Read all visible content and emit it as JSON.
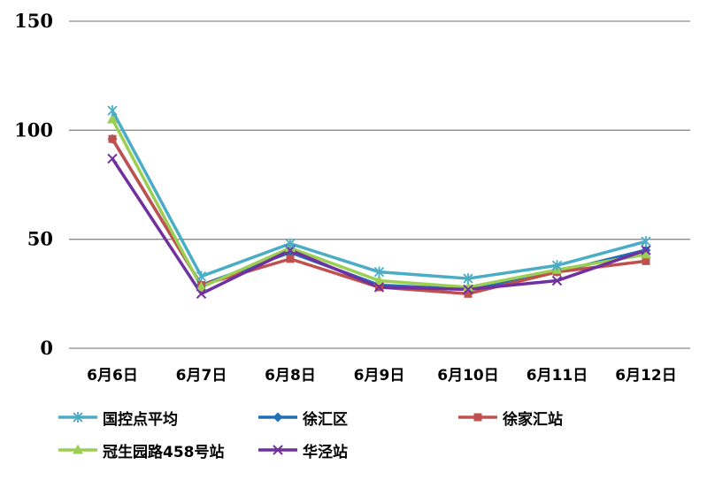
{
  "chart_data": {
    "type": "line",
    "title": "",
    "xlabel": "",
    "ylabel": "",
    "categories": [
      "6月6日",
      "6月7日",
      "6月8日",
      "6月9日",
      "6月10日",
      "6月11日",
      "6月12日"
    ],
    "ylim": [
      0,
      150
    ],
    "yticks": [
      0,
      50,
      100,
      150
    ],
    "grid": true,
    "legend_position": "bottom",
    "series": [
      {
        "name": "国控点平均",
        "color": "#4bacc6",
        "marker": "asterisk",
        "values": [
          109,
          33,
          48,
          35,
          32,
          38,
          49
        ]
      },
      {
        "name": "徐汇区",
        "color": "#1f6fb5",
        "marker": "diamond",
        "values": [
          96,
          29,
          44,
          29,
          27,
          35,
          45
        ]
      },
      {
        "name": "徐家汇站",
        "color": "#c0504d",
        "marker": "square",
        "values": [
          96,
          29,
          41,
          28,
          25,
          35,
          40
        ]
      },
      {
        "name": "冠生园路458号站",
        "color": "#9bcf53",
        "marker": "triangle",
        "values": [
          105,
          28,
          46,
          31,
          28,
          36,
          43
        ]
      },
      {
        "name": "华泾站",
        "color": "#7030a0",
        "marker": "x",
        "values": [
          87,
          25,
          45,
          28,
          27,
          31,
          45
        ]
      }
    ]
  }
}
